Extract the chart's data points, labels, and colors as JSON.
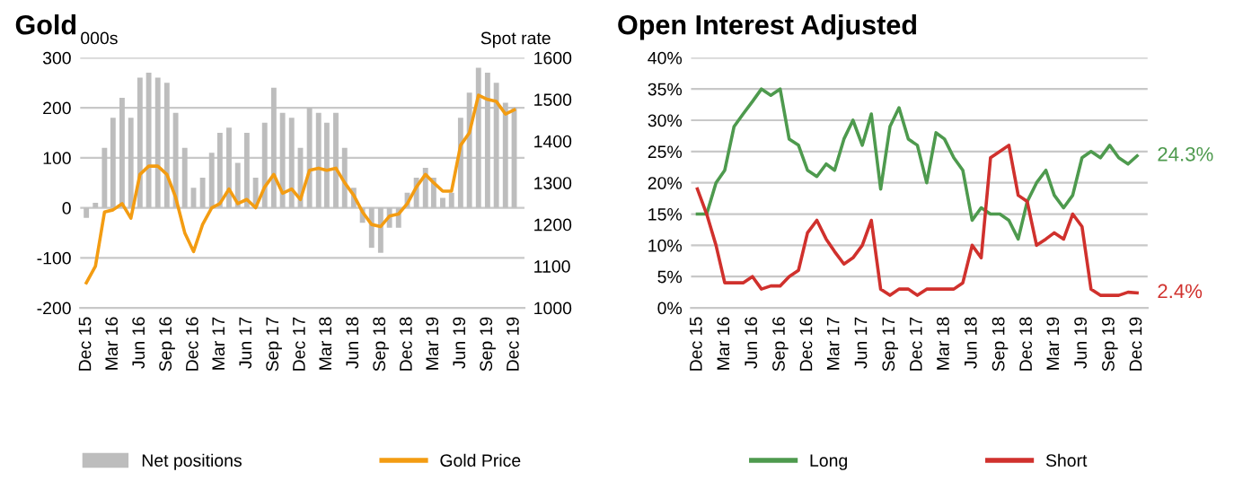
{
  "chart_data": [
    {
      "type": "bar",
      "title": "Gold",
      "ylabel": "000s",
      "y2label": "Spot rate",
      "xlim": [
        "2015-11-10",
        "2020-01-05"
      ],
      "xticks": [
        {
          "value": "2015-12",
          "label": "Dec 15"
        },
        {
          "value": "2016-03",
          "label": "Mar 16"
        },
        {
          "value": "2016-06",
          "label": "Jun 16"
        },
        {
          "value": "2016-09",
          "label": "Sep 16"
        },
        {
          "value": "2016-12",
          "label": "Dec 16"
        },
        {
          "value": "2017-03",
          "label": "Mar 17"
        },
        {
          "value": "2017-06",
          "label": "Jun 17"
        },
        {
          "value": "2017-09",
          "label": "Sep 17"
        },
        {
          "value": "2017-12",
          "label": "Dec 17"
        },
        {
          "value": "2018-03",
          "label": "Mar 18"
        },
        {
          "value": "2018-06",
          "label": "Jun 18"
        },
        {
          "value": "2018-09",
          "label": "Sep 18"
        },
        {
          "value": "2018-12",
          "label": "Dec 18"
        },
        {
          "value": "2019-03",
          "label": "Mar 19"
        },
        {
          "value": "2019-06",
          "label": "Jun 19"
        },
        {
          "value": "2019-09",
          "label": "Sep 19"
        },
        {
          "value": "2019-12",
          "label": "Dec 19"
        }
      ],
      "ylim": [
        -200,
        300
      ],
      "yticks": [
        -200,
        -100,
        0,
        100,
        200,
        300
      ],
      "y2lim": [
        1000,
        1600
      ],
      "y2ticks": [
        1000,
        1100,
        1200,
        1300,
        1400,
        1500,
        1600
      ],
      "grid": "y",
      "legend": "bottom",
      "x": [
        "2015-12",
        "2016-01",
        "2016-02",
        "2016-03",
        "2016-04",
        "2016-05",
        "2016-06",
        "2016-07",
        "2016-08",
        "2016-09",
        "2016-10",
        "2016-11",
        "2016-12",
        "2017-01",
        "2017-02",
        "2017-03",
        "2017-04",
        "2017-05",
        "2017-06",
        "2017-07",
        "2017-08",
        "2017-09",
        "2017-10",
        "2017-11",
        "2017-12",
        "2018-01",
        "2018-02",
        "2018-03",
        "2018-04",
        "2018-05",
        "2018-06",
        "2018-07",
        "2018-08",
        "2018-09",
        "2018-10",
        "2018-11",
        "2018-12",
        "2019-01",
        "2019-02",
        "2019-03",
        "2019-04",
        "2019-05",
        "2019-06",
        "2019-07",
        "2019-08",
        "2019-09",
        "2019-10",
        "2019-11",
        "2019-12"
      ],
      "series": [
        {
          "name": "Net positions",
          "type": "bar",
          "color": "#bdbdbd",
          "values": [
            -20,
            10,
            120,
            180,
            220,
            180,
            260,
            270,
            260,
            250,
            190,
            120,
            40,
            60,
            110,
            150,
            160,
            90,
            150,
            60,
            170,
            240,
            190,
            180,
            120,
            200,
            190,
            170,
            190,
            120,
            40,
            -30,
            -80,
            -90,
            -40,
            -40,
            30,
            60,
            80,
            60,
            20,
            30,
            180,
            230,
            280,
            270,
            250,
            210,
            200
          ]
        },
        {
          "name": "Gold Price",
          "type": "line",
          "axis": "y2",
          "color": "#f39c12",
          "values": [
            1060,
            1100,
            1230,
            1235,
            1250,
            1215,
            1320,
            1340,
            1340,
            1320,
            1265,
            1180,
            1135,
            1200,
            1240,
            1250,
            1285,
            1250,
            1260,
            1240,
            1290,
            1320,
            1275,
            1285,
            1260,
            1330,
            1335,
            1330,
            1335,
            1300,
            1270,
            1230,
            1200,
            1195,
            1220,
            1225,
            1250,
            1290,
            1320,
            1300,
            1280,
            1280,
            1390,
            1420,
            1510,
            1500,
            1495,
            1465,
            1475
          ]
        }
      ]
    },
    {
      "type": "line",
      "title": "Open Interest Adjusted",
      "xlim": [
        "2015-11-10",
        "2020-01-05"
      ],
      "xticks": [
        {
          "value": "2015-12",
          "label": "Dec 15"
        },
        {
          "value": "2016-03",
          "label": "Mar 16"
        },
        {
          "value": "2016-06",
          "label": "Jun 16"
        },
        {
          "value": "2016-09",
          "label": "Sep 16"
        },
        {
          "value": "2016-12",
          "label": "Dec 16"
        },
        {
          "value": "2017-03",
          "label": "Mar 17"
        },
        {
          "value": "2017-06",
          "label": "Jun 17"
        },
        {
          "value": "2017-09",
          "label": "Sep 17"
        },
        {
          "value": "2017-12",
          "label": "Dec 17"
        },
        {
          "value": "2018-03",
          "label": "Mar 18"
        },
        {
          "value": "2018-06",
          "label": "Jun 18"
        },
        {
          "value": "2018-09",
          "label": "Sep 18"
        },
        {
          "value": "2018-12",
          "label": "Dec 18"
        },
        {
          "value": "2019-03",
          "label": "Mar 19"
        },
        {
          "value": "2019-06",
          "label": "Jun 19"
        },
        {
          "value": "2019-09",
          "label": "Sep 19"
        },
        {
          "value": "2019-12",
          "label": "Dec 19"
        }
      ],
      "ylim": [
        0,
        40
      ],
      "yticks": [
        {
          "value": 0,
          "label": "0%"
        },
        {
          "value": 5,
          "label": "5%"
        },
        {
          "value": 10,
          "label": "10%"
        },
        {
          "value": 15,
          "label": "15%"
        },
        {
          "value": 20,
          "label": "20%"
        },
        {
          "value": 25,
          "label": "25%"
        },
        {
          "value": 30,
          "label": "30%"
        },
        {
          "value": 35,
          "label": "35%"
        },
        {
          "value": 40,
          "label": "40%"
        }
      ],
      "grid": "y",
      "legend": "bottom",
      "x": [
        "2015-12",
        "2016-01",
        "2016-02",
        "2016-03",
        "2016-04",
        "2016-05",
        "2016-06",
        "2016-07",
        "2016-08",
        "2016-09",
        "2016-10",
        "2016-11",
        "2016-12",
        "2017-01",
        "2017-02",
        "2017-03",
        "2017-04",
        "2017-05",
        "2017-06",
        "2017-07",
        "2017-08",
        "2017-09",
        "2017-10",
        "2017-11",
        "2017-12",
        "2018-01",
        "2018-02",
        "2018-03",
        "2018-04",
        "2018-05",
        "2018-06",
        "2018-07",
        "2018-08",
        "2018-09",
        "2018-10",
        "2018-11",
        "2018-12",
        "2019-01",
        "2019-02",
        "2019-03",
        "2019-04",
        "2019-05",
        "2019-06",
        "2019-07",
        "2019-08",
        "2019-09",
        "2019-10",
        "2019-11",
        "2019-12"
      ],
      "series": [
        {
          "name": "Long",
          "color": "#4e9a4e",
          "values": [
            15,
            15,
            20,
            22,
            29,
            31,
            33,
            35,
            34,
            35,
            27,
            26,
            22,
            21,
            23,
            22,
            27,
            30,
            26,
            31,
            19,
            29,
            32,
            27,
            26,
            20,
            28,
            27,
            24,
            22,
            14,
            16,
            15,
            15,
            14,
            11,
            17,
            20,
            22,
            18,
            16,
            18,
            24,
            25,
            24,
            26,
            24,
            23,
            24.3
          ]
        },
        {
          "name": "Short",
          "color": "#d0312d",
          "values": [
            19,
            15,
            10,
            4,
            4,
            4,
            5,
            3,
            3.5,
            3.5,
            5,
            6,
            12,
            14,
            11,
            9,
            7,
            8,
            10,
            14,
            3,
            2,
            3,
            3,
            2,
            3,
            3,
            3,
            3,
            4,
            10,
            8,
            24,
            25,
            26,
            18,
            17,
            10,
            11,
            12,
            11,
            15,
            13,
            3,
            2,
            2,
            2,
            2.5,
            2.4
          ]
        }
      ],
      "annotations": [
        {
          "text": "24.3%",
          "x": "2019-12",
          "y": 24.3
        },
        {
          "text": "2.4%",
          "x": "2019-12",
          "y": 2.4
        }
      ]
    }
  ]
}
